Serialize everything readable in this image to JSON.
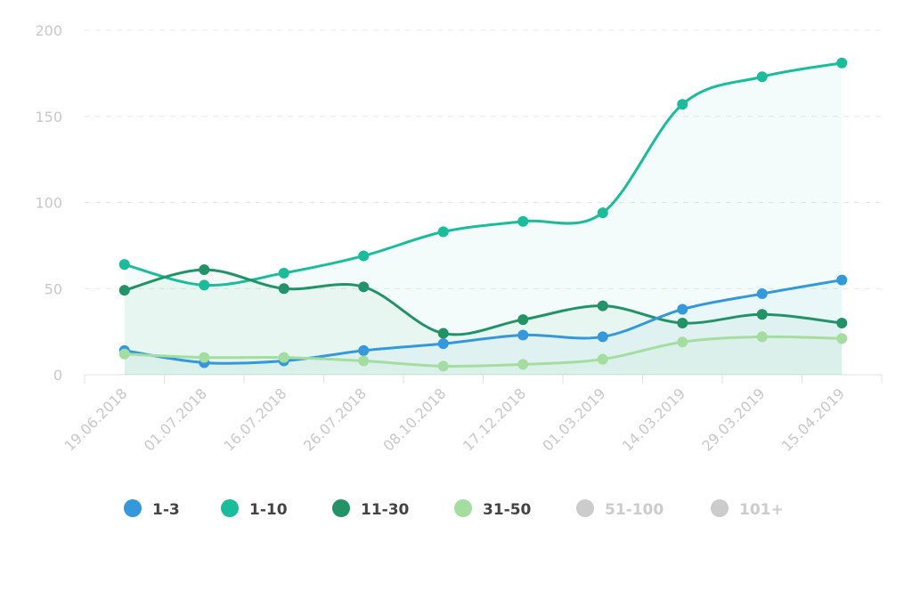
{
  "chart_data": {
    "type": "line",
    "categories": [
      "19.06.2018",
      "01.07.2018",
      "16.07.2018",
      "26.07.2018",
      "08.10.2018",
      "17.12.2018",
      "01.03.2019",
      "14.03.2019",
      "29.03.2019",
      "15.04.2019"
    ],
    "series": [
      {
        "name": "1-3",
        "color": "#3498db",
        "values": [
          14,
          7,
          8,
          14,
          18,
          23,
          22,
          38,
          47,
          55
        ]
      },
      {
        "name": "1-10",
        "color": "#1abc9c",
        "values": [
          64,
          52,
          59,
          69,
          83,
          89,
          94,
          157,
          173,
          181
        ]
      },
      {
        "name": "11-30",
        "color": "#229366",
        "values": [
          49,
          61,
          50,
          51,
          24,
          32,
          40,
          30,
          35,
          30
        ]
      },
      {
        "name": "31-50",
        "color": "#a3dea0",
        "values": [
          12,
          10,
          10,
          8,
          5,
          6,
          9,
          19,
          22,
          21
        ]
      },
      {
        "name": "51-100",
        "color": "#cccccc",
        "hidden": true
      },
      {
        "name": "101+",
        "color": "#cccccc",
        "hidden": true
      }
    ],
    "ylim": [
      0,
      200
    ],
    "yticks": [
      0,
      50,
      100,
      150,
      200
    ],
    "grid": true
  }
}
